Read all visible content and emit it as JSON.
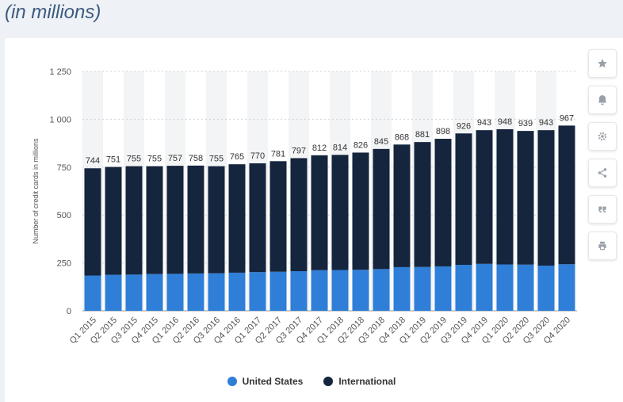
{
  "header": {
    "subtitle": "(in millions)"
  },
  "colors": {
    "us": "#2f7ed8",
    "international": "#14253d",
    "grid": "#cfd3d8",
    "band": "#f3f4f6"
  },
  "toolbar": {
    "buttons": [
      {
        "name": "favorite-button",
        "icon": "star-icon"
      },
      {
        "name": "notification-button",
        "icon": "bell-icon"
      },
      {
        "name": "settings-button",
        "icon": "gear-icon"
      },
      {
        "name": "share-button",
        "icon": "share-icon"
      },
      {
        "name": "cite-button",
        "icon": "quote-icon"
      },
      {
        "name": "print-button",
        "icon": "print-icon"
      }
    ]
  },
  "chart_data": {
    "type": "bar",
    "stacked": true,
    "ylabel": "Number of credit cards in millions",
    "ylim": [
      0,
      1250
    ],
    "yticks": [
      0,
      250,
      500,
      750,
      1000,
      1250
    ],
    "ytick_labels": [
      "0",
      "250",
      "500",
      "750",
      "1 000",
      "1 250"
    ],
    "categories": [
      "Q1 2015",
      "Q2 2015",
      "Q3 2015",
      "Q4 2015",
      "Q1 2016",
      "Q2 2016",
      "Q3 2016",
      "Q4 2016",
      "Q1 2017",
      "Q2 2017",
      "Q3 2017",
      "Q4 2017",
      "Q1 2018",
      "Q2 2018",
      "Q3 2018",
      "Q4 2018",
      "Q1 2019",
      "Q2 2019",
      "Q3 2019",
      "Q4 2019",
      "Q1 2020",
      "Q2 2020",
      "Q3 2020",
      "Q4 2020"
    ],
    "series": [
      {
        "name": "United States",
        "values": [
          184,
          188,
          189,
          192,
          193,
          195,
          196,
          199,
          202,
          204,
          207,
          212,
          213,
          214,
          218,
          228,
          229,
          232,
          240,
          245,
          242,
          241,
          236,
          243
        ]
      },
      {
        "name": "International",
        "values": [
          560,
          563,
          566,
          563,
          564,
          563,
          559,
          566,
          568,
          577,
          590,
          600,
          601,
          612,
          627,
          640,
          652,
          666,
          686,
          698,
          706,
          698,
          707,
          724
        ]
      }
    ],
    "totals": [
      744,
      751,
      755,
      755,
      757,
      758,
      755,
      765,
      770,
      781,
      797,
      812,
      814,
      826,
      845,
      868,
      881,
      898,
      926,
      943,
      948,
      939,
      943,
      967
    ],
    "grid": true,
    "legend_position": "bottom"
  }
}
